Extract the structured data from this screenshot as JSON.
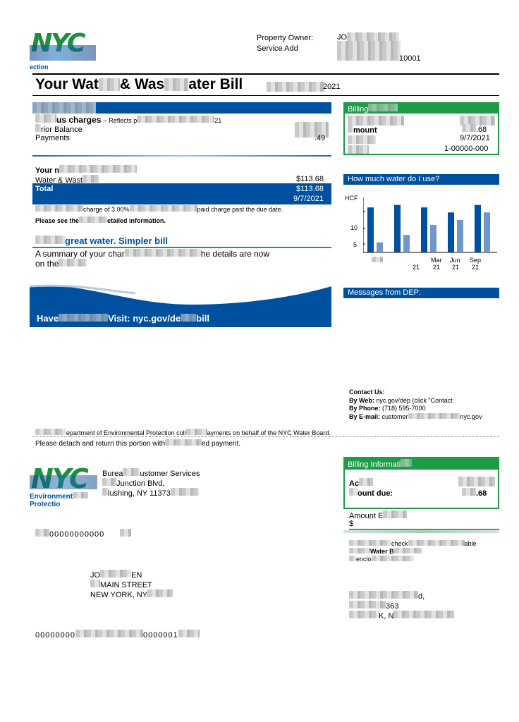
{
  "header": {
    "property_owner_label": "Property Owner:",
    "property_owner_value": "JO",
    "service_address_label": "Service Add",
    "service_address_value": "10001",
    "logo_text": "NYC",
    "logo_sub": "ection"
  },
  "title": {
    "text_a": "Your Wat",
    "text_b": "& Was",
    "text_c": "ater Bill",
    "date_suffix": "2021"
  },
  "previous_charges": {
    "heading": "us charges",
    "reflects": "– Reflects p",
    "reflects_end": "21",
    "prior_balance_label": "rior Balance",
    "payments_label": "Payments",
    "payments_value": ".49"
  },
  "new_charges": {
    "heading": "Your n",
    "water_label": "Water & Wast",
    "water_value": "$113.68",
    "total_label": "Total",
    "total_value": "$113.68",
    "due_date": "9/7/2021",
    "late_note_a": "charge of 3.00%",
    "late_note_b": "paid charge past the due date.",
    "see_note_a": "Please see the",
    "see_note_b": "etailed information."
  },
  "promo": {
    "heading": "great water. Simpler bill",
    "summary_a": "A summary of your char",
    "summary_b": "he details are now",
    "summary_c": "on the",
    "banner_a": "Have",
    "banner_b": "Visit: nyc.gov/de",
    "banner_c": "bill"
  },
  "billing_info": {
    "heading": "Billing",
    "amount_label": "mount",
    "amount_value": ".68",
    "due_date": "9/7/2021",
    "account": "1-00000-000"
  },
  "usage": {
    "heading": "How much water do I use?",
    "unit": "HCF"
  },
  "chart_data": {
    "type": "bar",
    "categories": [
      "",
      "",
      "Mar 21",
      "Jun 21",
      "Sep 21"
    ],
    "series": [
      {
        "values": [
          18,
          19,
          18,
          16,
          19
        ]
      },
      {
        "values": [
          4,
          7,
          11,
          13,
          16
        ]
      }
    ],
    "yticks": [
      "5",
      "10"
    ],
    "ylim": [
      0,
      22
    ],
    "tick_labels": {
      "t1a": "Mar",
      "t1b": "21",
      "t2a": "Jun",
      "t2b": "21",
      "t3a": "Sep",
      "t3b": "21",
      "t0b": "21"
    },
    "colors": {
      "primary": "#0050a0",
      "secondary": "#6f97c7"
    }
  },
  "messages": {
    "heading": "Messages from DEP:"
  },
  "contact": {
    "heading": "Contact Us:",
    "web_label": "By Web:",
    "web_value": "nyc.gov/dep (click \"Contact",
    "phone_label": "By Phone:",
    "phone_value": "(718) 595-7000",
    "email_label": "By E-mail:",
    "email_value_a": "customer",
    "email_value_b": "nyc.gov"
  },
  "footer": {
    "collect_a": "epartment of Environmental Protection coll",
    "collect_b": "ayments on behalf of the NYC Water Board.",
    "detach_a": "Please detach and return this portion with",
    "detach_b": "ed payment."
  },
  "stub": {
    "logo_text": "NYC",
    "env_a": "Environment",
    "env_b": "Protectio",
    "bureau_a": "Burea",
    "bureau_b": "ustomer Services",
    "addr_a": "Junction Blvd,",
    "addr_b": "lushing, NY 11373",
    "barcode_a": "00000000000",
    "name_a": "JO",
    "name_b": "EN",
    "street": "MAIN STREET",
    "city": "NEW YORK, NY",
    "scan_a": "00000000",
    "scan_b": "0000001",
    "billing_heading": "Billing Informati",
    "acct_label": "Ac",
    "amount_due_label": "ount due:",
    "amount_due_value": ".68",
    "amount_enclosed_label": "Amount E",
    "dollar": "$",
    "check_a": "check",
    "check_b": "able",
    "check_c": "Water B",
    "check_d": "enclo",
    "remit_a": "d,",
    "remit_b": "363",
    "remit_c": "K, N"
  },
  "colors": {
    "blue": "#0050a0",
    "green": "#1d9b46"
  }
}
